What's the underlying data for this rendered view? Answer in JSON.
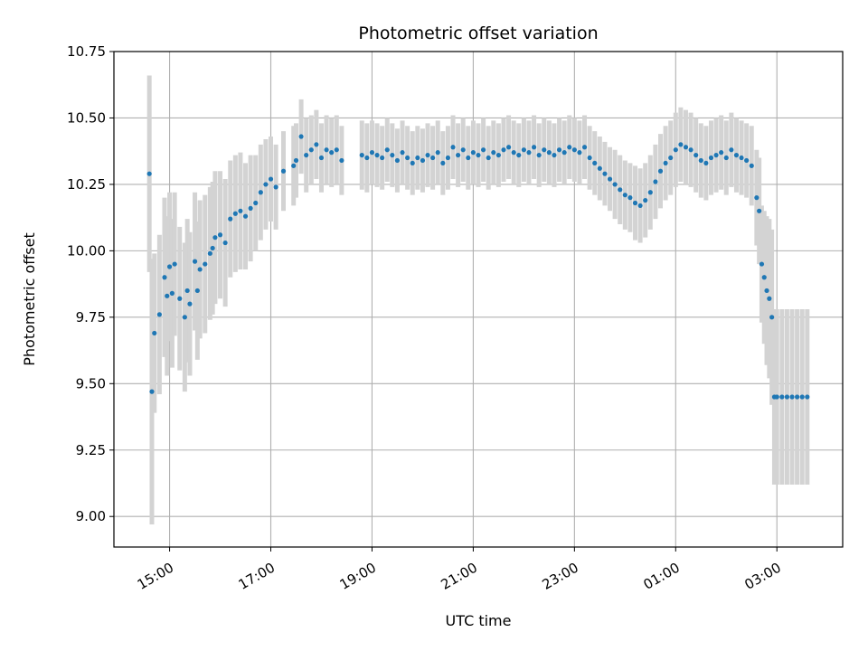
{
  "chart_data": {
    "type": "scatter",
    "title": "Photometric offset variation",
    "xlabel": "UTC time",
    "ylabel": "Photometric offset",
    "x_unit": "hours UTC (values past 24 are after midnight)",
    "xlim": [
      13.9,
      28.3
    ],
    "ylim": [
      8.885,
      10.75
    ],
    "yticks": [
      9.0,
      9.25,
      9.5,
      9.75,
      10.0,
      10.25,
      10.5,
      10.75
    ],
    "ytick_labels": [
      "9.00",
      "9.25",
      "9.50",
      "9.75",
      "10.00",
      "10.25",
      "10.50",
      "10.75"
    ],
    "xticks": [
      15,
      17,
      19,
      21,
      23,
      25,
      27
    ],
    "xtick_labels": [
      "15:00",
      "17:00",
      "19:00",
      "21:00",
      "23:00",
      "01:00",
      "03:00"
    ],
    "grid": true,
    "point_color": "#1f77b4",
    "errorbar_color": "#d3d3d3",
    "series": [
      {
        "x": [
          14.6,
          14.65,
          14.7,
          14.8,
          14.9,
          14.95,
          15.0,
          15.05,
          15.1,
          15.2,
          15.3,
          15.35,
          15.4,
          15.5,
          15.55,
          15.6,
          15.7,
          15.8,
          15.85,
          15.9,
          16.0,
          16.1,
          16.2,
          16.3,
          16.4,
          16.5,
          16.6,
          16.7,
          16.8,
          16.9,
          17.0,
          17.1,
          17.25,
          17.45,
          17.5,
          17.6,
          17.7,
          17.8,
          17.9,
          18.0,
          18.1,
          18.2,
          18.3,
          18.4,
          18.8,
          18.9,
          19.0,
          19.1,
          19.2,
          19.3,
          19.4,
          19.5,
          19.6,
          19.7,
          19.8,
          19.9,
          20.0,
          20.1,
          20.2,
          20.3,
          20.4,
          20.5,
          20.6,
          20.7,
          20.8,
          20.9,
          21.0,
          21.1,
          21.2,
          21.3,
          21.4,
          21.5,
          21.6,
          21.7,
          21.8,
          21.9,
          22.0,
          22.1,
          22.2,
          22.3,
          22.4,
          22.5,
          22.6,
          22.7,
          22.8,
          22.9,
          23.0,
          23.1,
          23.2,
          23.3,
          23.4,
          23.5,
          23.6,
          23.7,
          23.8,
          23.9,
          24.0,
          24.1,
          24.2,
          24.3,
          24.4,
          24.5,
          24.6,
          24.7,
          24.8,
          24.9,
          25.0,
          25.1,
          25.2,
          25.3,
          25.4,
          25.5,
          25.6,
          25.7,
          25.8,
          25.9,
          26.0,
          26.1,
          26.2,
          26.3,
          26.4,
          26.5,
          26.6,
          26.65,
          26.7,
          26.75,
          26.8,
          26.85,
          26.9,
          26.95,
          27.0,
          27.1,
          27.2,
          27.3,
          27.4,
          27.5,
          27.6
        ],
        "y": [
          10.29,
          9.47,
          9.69,
          9.76,
          9.9,
          9.83,
          9.94,
          9.84,
          9.95,
          9.82,
          9.75,
          9.85,
          9.8,
          9.96,
          9.85,
          9.93,
          9.95,
          9.99,
          10.01,
          10.05,
          10.06,
          10.03,
          10.12,
          10.14,
          10.15,
          10.13,
          10.16,
          10.18,
          10.22,
          10.25,
          10.27,
          10.24,
          10.3,
          10.32,
          10.34,
          10.43,
          10.36,
          10.38,
          10.4,
          10.35,
          10.38,
          10.37,
          10.38,
          10.34,
          10.36,
          10.35,
          10.37,
          10.36,
          10.35,
          10.38,
          10.36,
          10.34,
          10.37,
          10.35,
          10.33,
          10.35,
          10.34,
          10.36,
          10.35,
          10.37,
          10.33,
          10.35,
          10.39,
          10.36,
          10.38,
          10.35,
          10.37,
          10.36,
          10.38,
          10.35,
          10.37,
          10.36,
          10.38,
          10.39,
          10.37,
          10.36,
          10.38,
          10.37,
          10.39,
          10.36,
          10.38,
          10.37,
          10.36,
          10.38,
          10.37,
          10.39,
          10.38,
          10.37,
          10.39,
          10.35,
          10.33,
          10.31,
          10.29,
          10.27,
          10.25,
          10.23,
          10.21,
          10.2,
          10.18,
          10.17,
          10.19,
          10.22,
          10.26,
          10.3,
          10.33,
          10.35,
          10.38,
          10.4,
          10.39,
          10.38,
          10.36,
          10.34,
          10.33,
          10.35,
          10.36,
          10.37,
          10.35,
          10.38,
          10.36,
          10.35,
          10.34,
          10.32,
          10.2,
          10.15,
          9.95,
          9.9,
          9.85,
          9.82,
          9.75,
          9.45,
          9.45,
          9.45,
          9.45,
          9.45,
          9.45,
          9.45,
          9.45
        ],
        "yerr": [
          0.37,
          0.5,
          0.3,
          0.3,
          0.3,
          0.3,
          0.28,
          0.28,
          0.27,
          0.27,
          0.28,
          0.27,
          0.27,
          0.26,
          0.26,
          0.26,
          0.26,
          0.25,
          0.25,
          0.25,
          0.24,
          0.24,
          0.22,
          0.22,
          0.22,
          0.2,
          0.2,
          0.18,
          0.18,
          0.17,
          0.16,
          0.16,
          0.15,
          0.15,
          0.14,
          0.14,
          0.14,
          0.13,
          0.13,
          0.13,
          0.13,
          0.13,
          0.13,
          0.13,
          0.13,
          0.13,
          0.12,
          0.12,
          0.12,
          0.12,
          0.12,
          0.12,
          0.12,
          0.12,
          0.12,
          0.12,
          0.12,
          0.12,
          0.12,
          0.12,
          0.12,
          0.12,
          0.12,
          0.12,
          0.12,
          0.12,
          0.12,
          0.12,
          0.12,
          0.12,
          0.12,
          0.12,
          0.12,
          0.12,
          0.12,
          0.12,
          0.12,
          0.12,
          0.12,
          0.12,
          0.12,
          0.12,
          0.12,
          0.12,
          0.12,
          0.12,
          0.12,
          0.12,
          0.12,
          0.12,
          0.12,
          0.12,
          0.12,
          0.12,
          0.13,
          0.13,
          0.13,
          0.13,
          0.14,
          0.14,
          0.14,
          0.14,
          0.14,
          0.14,
          0.14,
          0.14,
          0.14,
          0.14,
          0.14,
          0.14,
          0.14,
          0.14,
          0.14,
          0.14,
          0.14,
          0.14,
          0.14,
          0.14,
          0.14,
          0.14,
          0.14,
          0.15,
          0.18,
          0.2,
          0.22,
          0.25,
          0.28,
          0.3,
          0.33,
          0.33,
          0.33,
          0.33,
          0.33,
          0.33,
          0.33,
          0.33,
          0.33
        ]
      }
    ]
  }
}
